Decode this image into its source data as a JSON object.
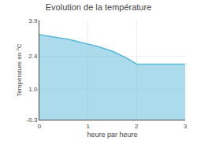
{
  "chart_data": {
    "type": "area",
    "title": "Evolution de la température",
    "x_label": "heure par heure",
    "y_label": "Température en °C",
    "x": [
      0,
      0.3,
      0.6,
      0.9,
      1.2,
      1.5,
      1.8,
      2.0,
      2.2,
      2.5,
      3.0
    ],
    "values": [
      3.3,
      3.2,
      3.1,
      2.95,
      2.8,
      2.6,
      2.3,
      2.05,
      2.05,
      2.05,
      2.05
    ],
    "color": "#5ab8d8",
    "xlim": [
      0,
      3
    ],
    "ylim": [
      -0.3,
      3.9
    ],
    "xticks": [
      0,
      1,
      2,
      3
    ],
    "yticks": [
      -0.3,
      {
        "value": 1,
        "label": "1.0"
      },
      2.4,
      3.9
    ],
    "grid": true
  }
}
